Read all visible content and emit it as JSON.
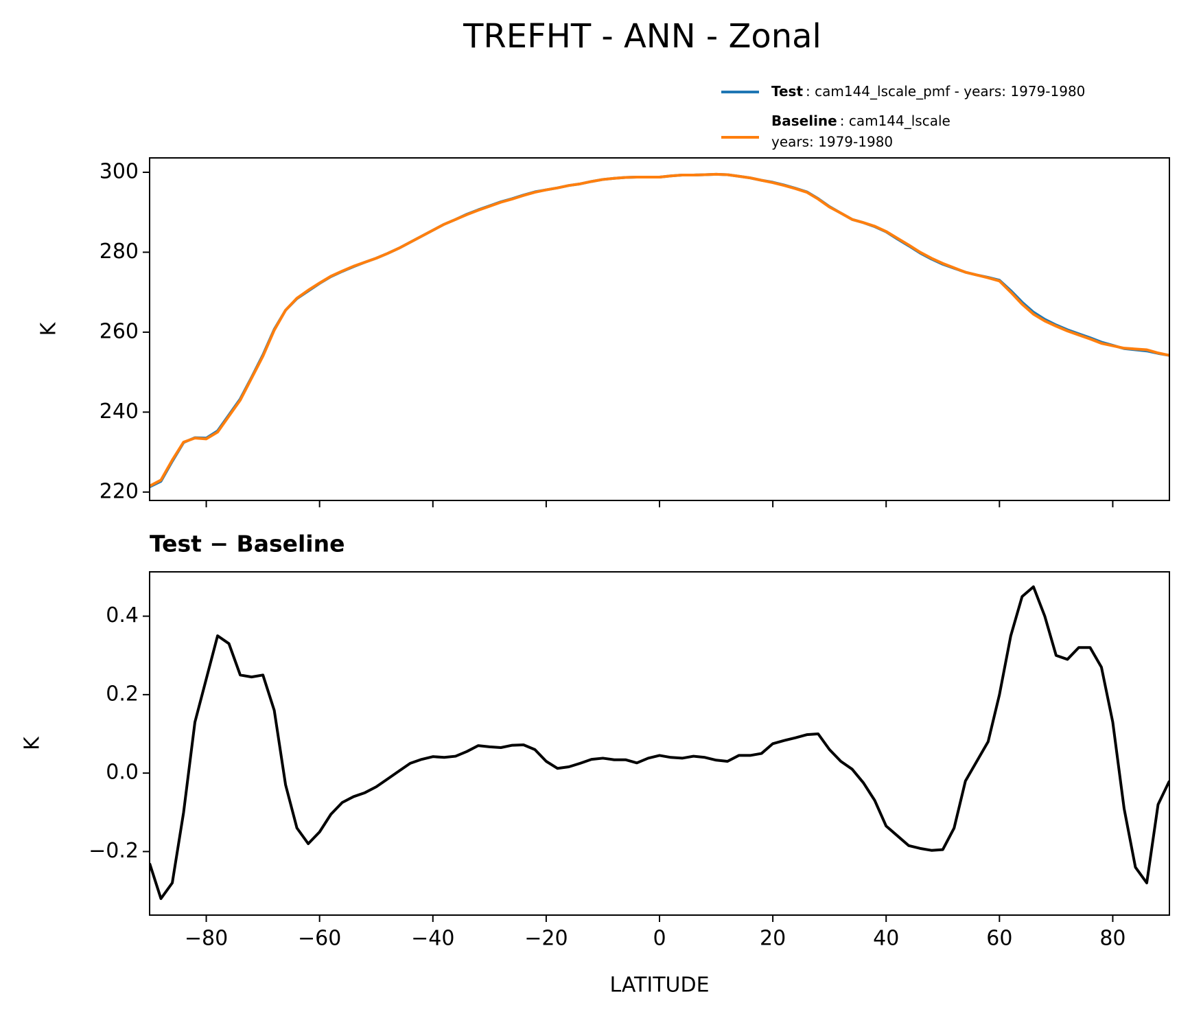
{
  "title": "TREFHT - ANN - Zonal",
  "chart_data": [
    {
      "type": "line",
      "ylabel": "K",
      "x": [
        -90,
        -88,
        -86,
        -84,
        -82,
        -80,
        -78,
        -76,
        -74,
        -72,
        -70,
        -68,
        -66,
        -64,
        -62,
        -60,
        -58,
        -56,
        -54,
        -52,
        -50,
        -48,
        -46,
        -44,
        -42,
        -40,
        -38,
        -36,
        -34,
        -32,
        -30,
        -28,
        -26,
        -24,
        -22,
        -20,
        -18,
        -16,
        -14,
        -12,
        -10,
        -8,
        -6,
        -4,
        -2,
        0,
        2,
        4,
        6,
        8,
        10,
        12,
        14,
        16,
        18,
        20,
        22,
        24,
        26,
        28,
        30,
        32,
        34,
        36,
        38,
        40,
        42,
        44,
        46,
        48,
        50,
        52,
        54,
        56,
        58,
        60,
        62,
        64,
        66,
        68,
        70,
        72,
        74,
        76,
        78,
        80,
        82,
        84,
        86,
        88,
        90
      ],
      "series": [
        {
          "name": "Test",
          "description": [
            ": cam144_lscale_pmf - years: 1979-1980"
          ],
          "color": "#1f77b4",
          "values": [
            221.3,
            222.7,
            227.7,
            232.4,
            233.6,
            233.5,
            235.3,
            239.3,
            243.3,
            248.7,
            254.3,
            260.7,
            265.5,
            268.4,
            270.3,
            272.2,
            273.9,
            275.2,
            276.4,
            277.5,
            278.5,
            279.7,
            281.0,
            282.5,
            284.0,
            285.5,
            287.0,
            288.2,
            289.5,
            290.6,
            291.6,
            292.6,
            293.4,
            294.3,
            295.1,
            295.6,
            296.1,
            296.7,
            297.1,
            297.7,
            298.2,
            298.5,
            298.7,
            298.8,
            298.8,
            298.8,
            299.1,
            299.3,
            299.3,
            299.4,
            299.5,
            299.4,
            299.0,
            298.6,
            298.0,
            297.5,
            296.8,
            296.0,
            295.1,
            293.4,
            291.4,
            289.8,
            288.2,
            287.4,
            286.4,
            285.1,
            283.3,
            281.6,
            279.8,
            278.3,
            277.0,
            276.0,
            275.0,
            274.3,
            273.7,
            273.0,
            270.4,
            267.5,
            265.0,
            263.2,
            261.8,
            260.6,
            259.6,
            258.6,
            257.5,
            256.7,
            255.9,
            255.6,
            255.3,
            254.7,
            254.2
          ]
        },
        {
          "name": "Baseline",
          "description": [
            ": cam144_lscale",
            "years: 1979-1980"
          ],
          "color": "#ff7f0e",
          "values": [
            221.5,
            223.0,
            228.0,
            232.5,
            233.5,
            233.3,
            235.0,
            239.0,
            243.0,
            248.5,
            254.0,
            260.5,
            265.5,
            268.5,
            270.5,
            272.3,
            274.0,
            275.3,
            276.5,
            277.5,
            278.5,
            279.7,
            281.0,
            282.5,
            284.0,
            285.5,
            287.0,
            288.2,
            289.4,
            290.5,
            291.5,
            292.5,
            293.3,
            294.2,
            295.0,
            295.6,
            296.1,
            296.7,
            297.1,
            297.7,
            298.2,
            298.5,
            298.7,
            298.8,
            298.8,
            298.8,
            299.1,
            299.3,
            299.3,
            299.4,
            299.5,
            299.4,
            299.0,
            298.6,
            298.0,
            297.4,
            296.7,
            295.9,
            295.0,
            293.3,
            291.3,
            289.8,
            288.2,
            287.4,
            286.5,
            285.2,
            283.5,
            281.8,
            280.0,
            278.5,
            277.2,
            276.1,
            275.0,
            274.3,
            273.6,
            272.8,
            270.0,
            267.0,
            264.5,
            262.8,
            261.5,
            260.3,
            259.3,
            258.3,
            257.2,
            256.6,
            256.0,
            255.8,
            255.6,
            254.8,
            254.2
          ]
        }
      ],
      "xlim": [
        -90,
        90
      ],
      "xticks": [
        -80,
        -60,
        -40,
        -20,
        0,
        20,
        40,
        60,
        80
      ],
      "ylim": [
        217.9,
        303.6
      ],
      "yticks": [
        220,
        240,
        260,
        280,
        300
      ]
    },
    {
      "type": "line",
      "title": "Test − Baseline",
      "xlabel": "LATITUDE",
      "ylabel": "K",
      "x": [
        -90,
        -88,
        -86,
        -84,
        -82,
        -80,
        -78,
        -76,
        -74,
        -72,
        -70,
        -68,
        -66,
        -64,
        -62,
        -60,
        -58,
        -56,
        -54,
        -52,
        -50,
        -48,
        -46,
        -44,
        -42,
        -40,
        -38,
        -36,
        -34,
        -32,
        -30,
        -28,
        -26,
        -24,
        -22,
        -20,
        -18,
        -16,
        -14,
        -12,
        -10,
        -8,
        -6,
        -4,
        -2,
        0,
        2,
        4,
        6,
        8,
        10,
        12,
        14,
        16,
        18,
        20,
        22,
        24,
        26,
        28,
        30,
        32,
        34,
        36,
        38,
        40,
        42,
        44,
        46,
        48,
        50,
        52,
        54,
        56,
        58,
        60,
        62,
        64,
        66,
        68,
        70,
        72,
        74,
        76,
        78,
        80,
        82,
        84,
        86,
        88,
        90
      ],
      "series": [
        {
          "color": "#000000",
          "values": [
            -0.23,
            -0.32,
            -0.28,
            -0.1,
            0.13,
            0.24,
            0.35,
            0.33,
            0.25,
            0.245,
            0.25,
            0.16,
            -0.03,
            -0.14,
            -0.18,
            -0.15,
            -0.105,
            -0.075,
            -0.06,
            -0.05,
            -0.035,
            -0.015,
            0.005,
            0.025,
            0.035,
            0.042,
            0.04,
            0.043,
            0.055,
            0.07,
            0.067,
            0.065,
            0.071,
            0.072,
            0.06,
            0.03,
            0.012,
            0.016,
            0.025,
            0.035,
            0.038,
            0.034,
            0.034,
            0.026,
            0.038,
            0.045,
            0.04,
            0.038,
            0.043,
            0.04,
            0.033,
            0.03,
            0.045,
            0.045,
            0.05,
            0.075,
            0.083,
            0.09,
            0.098,
            0.1,
            0.06,
            0.03,
            0.01,
            -0.025,
            -0.07,
            -0.135,
            -0.16,
            -0.185,
            -0.192,
            -0.197,
            -0.195,
            -0.14,
            -0.02,
            0.03,
            0.08,
            0.2,
            0.35,
            0.45,
            0.475,
            0.4,
            0.3,
            0.29,
            0.32,
            0.32,
            0.27,
            0.13,
            -0.09,
            -0.24,
            -0.28,
            -0.08,
            -0.02
          ]
        }
      ],
      "xlim": [
        -90,
        90
      ],
      "xticks": [
        {
          "value": -80,
          "label": "−80"
        },
        {
          "value": -60,
          "label": "−60"
        },
        {
          "value": -40,
          "label": "−40"
        },
        {
          "value": -20,
          "label": "−20"
        },
        0,
        20,
        40,
        60,
        80
      ],
      "ylim": [
        -0.362,
        0.513
      ],
      "yticks": [
        {
          "value": -0.2,
          "label": "−0.2"
        },
        {
          "value": 0,
          "label": "0.0"
        },
        0.2,
        0.4
      ]
    }
  ]
}
